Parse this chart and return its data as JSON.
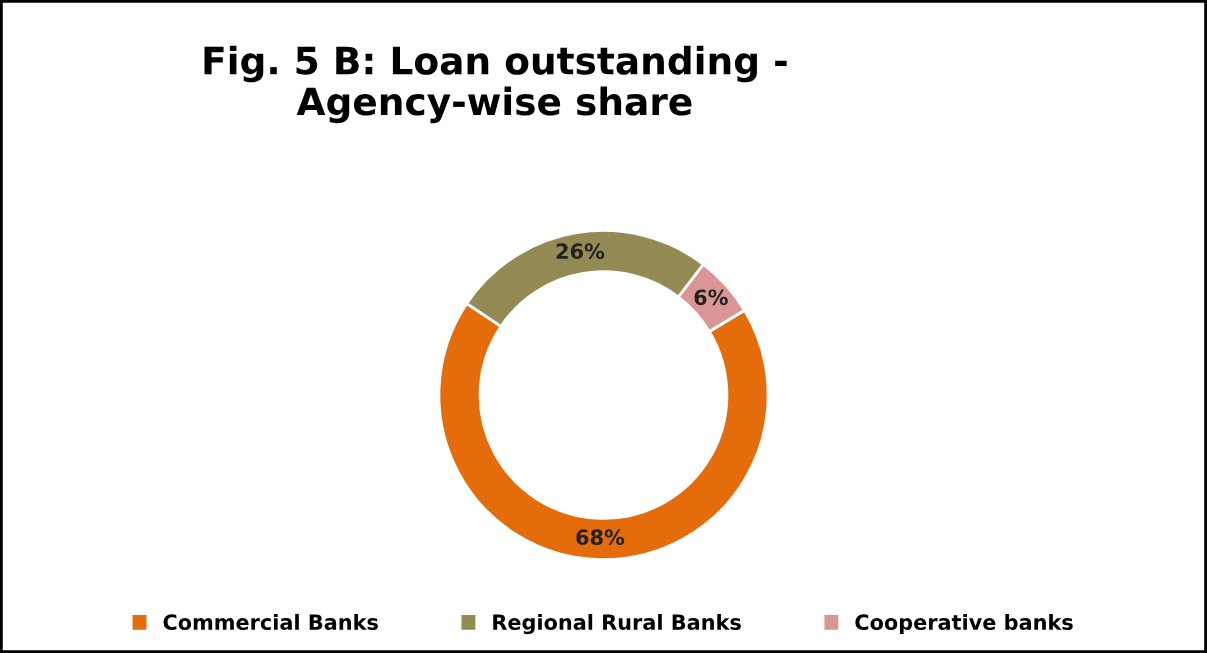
{
  "chart_data": {
    "type": "donut",
    "title": "Fig. 5 B: Loan outstanding -\nAgency-wise share",
    "categories": [
      "Commercial Banks",
      "Regional Rural Banks",
      "Cooperative banks"
    ],
    "values": [
      68,
      26,
      6
    ],
    "colors": [
      "#e46c0a",
      "#948a54",
      "#d99694"
    ],
    "value_labels": [
      "68%",
      "26%",
      "6%"
    ],
    "legend": "bottom"
  }
}
